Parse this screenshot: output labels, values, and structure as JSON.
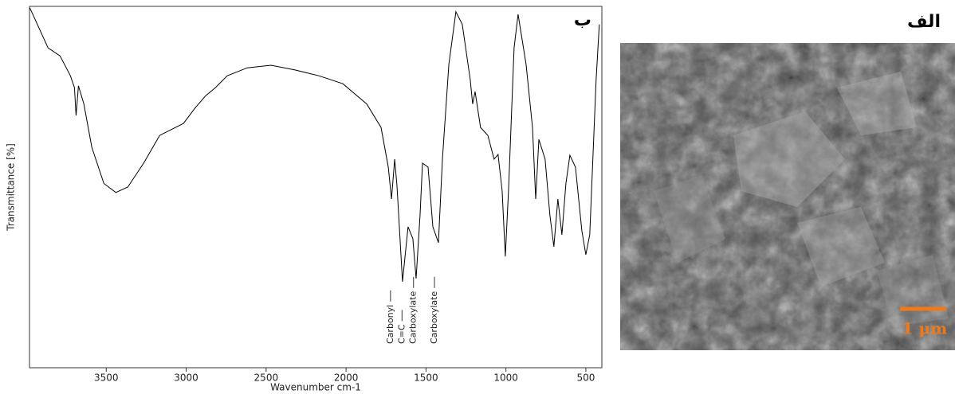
{
  "chart_data": {
    "type": "line",
    "panel_label": "ب",
    "xlabel": "Wavenumber cm-1",
    "ylabel": "Transmittance [%]",
    "xlim": [
      3980,
      400
    ],
    "ylim": [
      0,
      100
    ],
    "xticks": [
      3500,
      3000,
      2500,
      2000,
      1500,
      1000,
      500
    ],
    "series": [
      {
        "color": "#000000",
        "x": [
          3978,
          3864,
          3789,
          3724,
          3699,
          3689,
          3674,
          3640,
          3590,
          3515,
          3440,
          3365,
          3266,
          3166,
          3017,
          2942,
          2877,
          2817,
          2743,
          2618,
          2469,
          2319,
          2170,
          2020,
          1871,
          1781,
          1736,
          1716,
          1696,
          1681,
          1647,
          1612,
          1582,
          1562,
          1537,
          1522,
          1487,
          1457,
          1422,
          1397,
          1357,
          1313,
          1273,
          1223,
          1208,
          1193,
          1159,
          1113,
          1074,
          1049,
          1024,
          1004,
          984,
          949,
          924,
          874,
          834,
          814,
          794,
          755,
          725,
          700,
          675,
          650,
          625,
          600,
          565,
          525,
          500,
          476,
          436,
          416
        ],
        "values": [
          99.6,
          88.5,
          86.3,
          80.8,
          77.5,
          69.8,
          78,
          73,
          61,
          51,
          48.5,
          50,
          56.6,
          64.3,
          67.6,
          72,
          75.3,
          77.5,
          80.8,
          83,
          83.7,
          82.4,
          80.8,
          78.6,
          73,
          66.5,
          55.5,
          46.7,
          57.7,
          50,
          23.8,
          39,
          35.7,
          24.7,
          42.5,
          56.6,
          55.5,
          39,
          34.6,
          57.7,
          84,
          98.5,
          95,
          79.7,
          73,
          76.4,
          66.5,
          64.3,
          57.7,
          59,
          49,
          30.8,
          49,
          88.5,
          97.8,
          84,
          66.5,
          46.7,
          63.2,
          57.7,
          42.3,
          33.5,
          46.7,
          36.8,
          51,
          58.8,
          55.5,
          37.9,
          31.3,
          36.8,
          79.7,
          95
        ]
      }
    ],
    "annotations": [
      {
        "text": "Carbonyl",
        "x": 1722
      },
      {
        "text": "C=C",
        "x": 1650
      },
      {
        "text": "Carboxylate",
        "x": 1578
      },
      {
        "text": "Carboxylate",
        "x": 1447
      }
    ]
  },
  "image": {
    "label": "الف",
    "scale_bar": "1 μm"
  }
}
